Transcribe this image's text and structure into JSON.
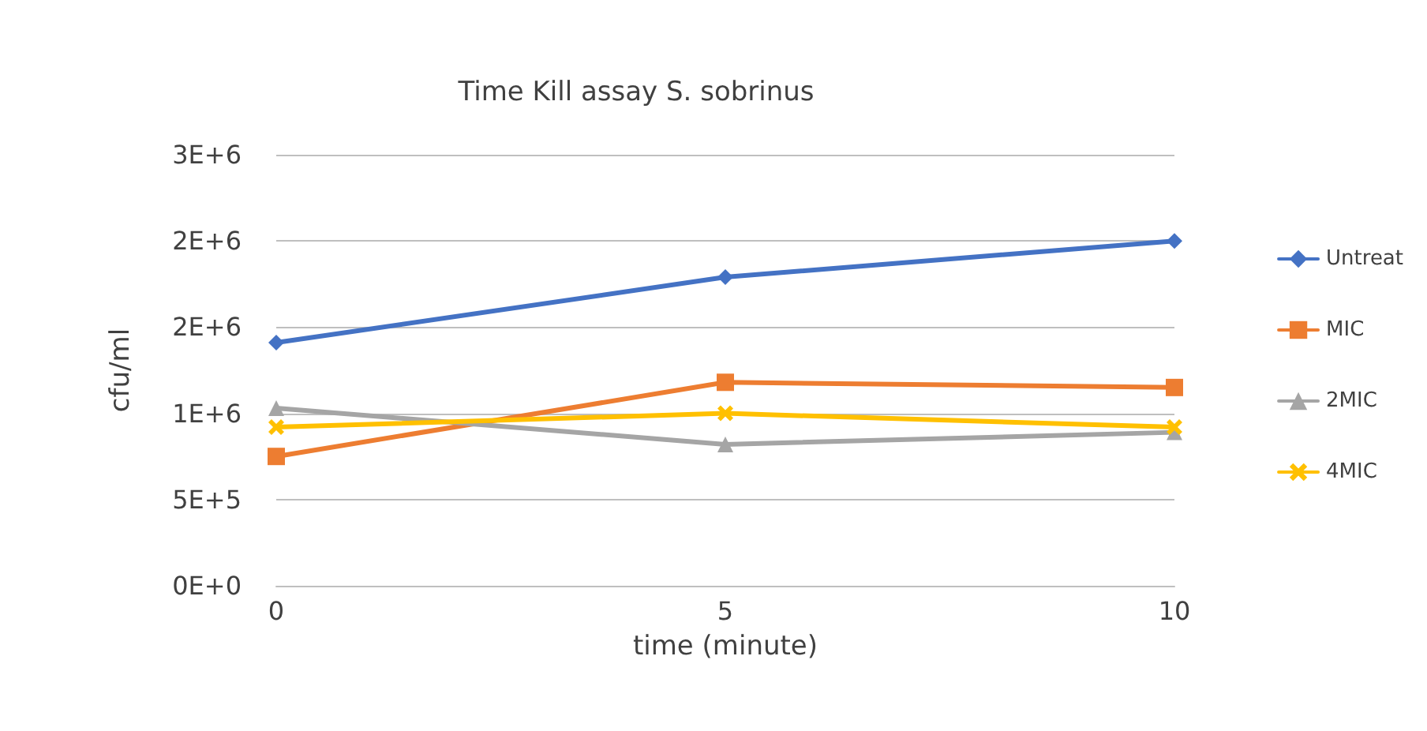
{
  "chart_data": {
    "type": "line",
    "title": "Time Kill assay S. sobrinus",
    "xlabel": "time (minute)",
    "ylabel": "cfu/ml",
    "categories": [
      "0",
      "5",
      "10"
    ],
    "series": [
      {
        "name": "Untreat",
        "color": "#4472c4",
        "marker": "diamond",
        "values": [
          1410000,
          1790000,
          2000000
        ]
      },
      {
        "name": "MIC",
        "color": "#ed7d31",
        "marker": "square",
        "values": [
          750000,
          1180000,
          1150000
        ]
      },
      {
        "name": "2MIC",
        "color": "#a5a5a5",
        "marker": "triangle",
        "values": [
          1030000,
          820000,
          890000
        ]
      },
      {
        "name": "4MIC",
        "color": "#ffc000",
        "marker": "cross",
        "values": [
          920000,
          1000000,
          920000
        ]
      }
    ],
    "ylim": [
      0,
      2500000
    ],
    "yticks": [
      {
        "value": 0,
        "label": "0E+0"
      },
      {
        "value": 500000,
        "label": "5E+5"
      },
      {
        "value": 1000000,
        "label": "1E+6"
      },
      {
        "value": 1500000,
        "label": "2E+6"
      },
      {
        "value": 2000000,
        "label": "2E+6"
      },
      {
        "value": 2500000,
        "label": "3E+6"
      }
    ],
    "grid": "y",
    "legend": "right",
    "line_style": "solid"
  }
}
